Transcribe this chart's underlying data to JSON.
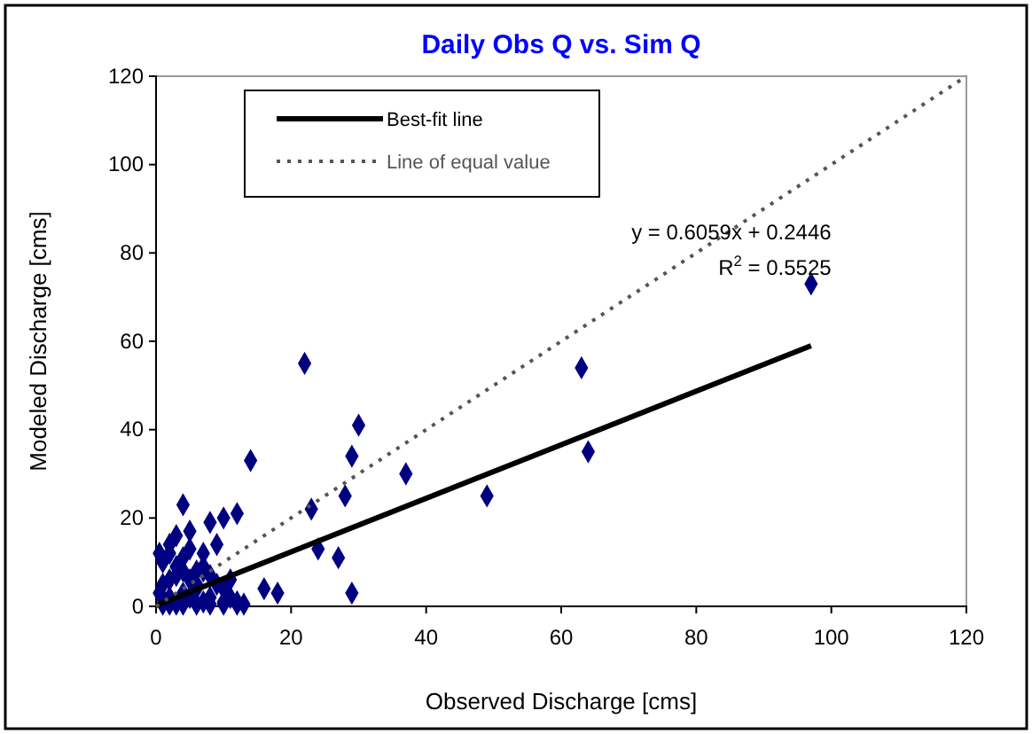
{
  "chart_data": {
    "type": "scatter",
    "title": "Daily Obs Q vs. Sim Q",
    "xlabel": "Observed Discharge [cms]",
    "ylabel": "Modeled Discharge [cms]",
    "xlim": [
      0,
      120
    ],
    "ylim": [
      0,
      120
    ],
    "xticks": [
      0,
      20,
      40,
      60,
      80,
      100,
      120
    ],
    "yticks": [
      0,
      20,
      40,
      60,
      80,
      100,
      120
    ],
    "grid": false,
    "legend": "top left",
    "annotations": [
      "y = 0.6059x + 0.2446",
      "R$^{2}$ = 0.5525"
    ],
    "series": [
      {
        "color": "#000080",
        "marker": "diamond",
        "x": [
          97,
          63,
          64,
          49,
          37,
          30,
          29,
          28,
          29,
          27,
          22,
          23,
          24,
          14,
          10,
          12,
          8,
          4,
          5,
          3,
          7,
          9,
          16,
          18,
          2,
          4,
          5,
          6,
          7,
          8,
          10,
          11,
          12,
          1,
          2,
          3,
          4,
          5,
          6,
          7,
          8,
          9,
          10,
          11,
          1,
          2,
          3,
          4,
          5,
          6,
          0.5,
          0.5,
          1,
          2,
          3,
          4,
          6,
          8,
          10,
          12,
          13,
          2,
          7
        ],
        "values": [
          73,
          54,
          35,
          25,
          30,
          41,
          34,
          25,
          3,
          11,
          55,
          22,
          13,
          33,
          20,
          21,
          19,
          23,
          17,
          16,
          12,
          14,
          4,
          3,
          2,
          3,
          2,
          4,
          1,
          2,
          1,
          2,
          1,
          5,
          6,
          7,
          8,
          6,
          5,
          9,
          7,
          5,
          4,
          6,
          10,
          12,
          9,
          11,
          13,
          8,
          3,
          12,
          0.5,
          0.5,
          0.5,
          0.5,
          0.5,
          0.5,
          0.5,
          0.5,
          0.5,
          14,
          8
        ]
      },
      {
        "type": "line",
        "name": "Best-fit line",
        "color": "#000000",
        "line_style": "solid",
        "marker": "none",
        "x": [
          0,
          97
        ],
        "values": [
          0.2,
          59
        ]
      },
      {
        "type": "line",
        "name": "Line of equal value",
        "color": "#555555",
        "line_style": "dotted",
        "marker": "none",
        "x": [
          0,
          120
        ],
        "values": [
          0,
          120
        ]
      }
    ]
  }
}
